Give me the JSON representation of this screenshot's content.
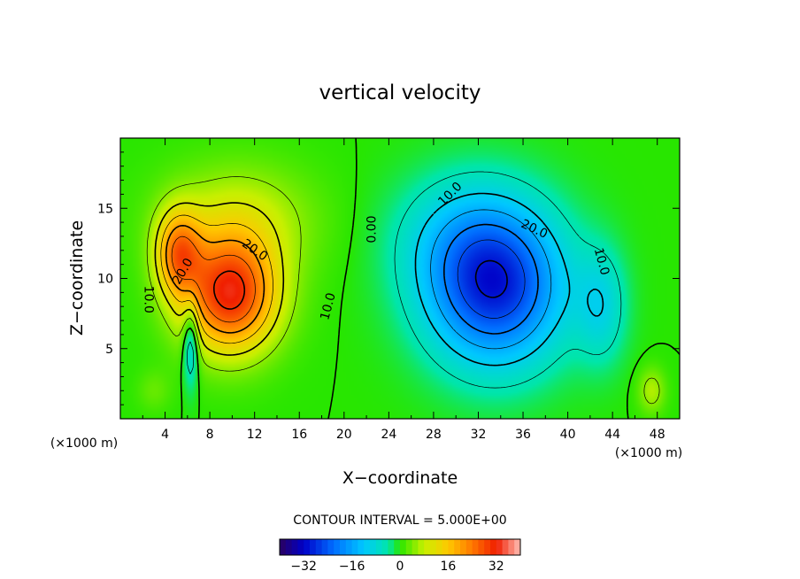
{
  "chart_data": {
    "type": "heatmap",
    "title": "vertical velocity",
    "xlabel": "X−coordinate",
    "ylabel": "Z−coordinate",
    "x_unit": "(×1000 m)",
    "z_unit": "(×1000 m)",
    "xlim": [
      0,
      50
    ],
    "ylim": [
      0,
      20
    ],
    "x_ticks": [
      4,
      8,
      12,
      16,
      20,
      24,
      28,
      32,
      36,
      40,
      44,
      48
    ],
    "y_ticks": [
      5,
      10,
      15
    ],
    "contour_interval_text": "CONTOUR INTERVAL = 5.000E+00",
    "contour_interval": 5,
    "colorbar": {
      "min": -40,
      "max": 40,
      "ticks": [
        -32,
        -16,
        0,
        16,
        32
      ]
    },
    "features": [
      {
        "kind": "updraft",
        "x": 9.5,
        "z": 9.2,
        "peak": 34
      },
      {
        "kind": "updraft",
        "x": 5.5,
        "z": 11.5,
        "peak": 27
      },
      {
        "kind": "downdraft",
        "x": 33.5,
        "z": 9.5,
        "peak": -29
      },
      {
        "kind": "updraft",
        "x": 47.5,
        "z": 2.0,
        "peak": 7
      }
    ],
    "contour_labels": [
      {
        "text": "20.0",
        "x": 12,
        "z": 12.0,
        "angle": 35
      },
      {
        "text": "20.0",
        "x": 5.6,
        "z": 10.5,
        "angle": -60
      },
      {
        "text": "10.0",
        "x": 2.5,
        "z": 8.5,
        "angle": 90
      },
      {
        "text": "10.0",
        "x": 18.6,
        "z": 8.0,
        "angle": -75
      },
      {
        "text": "0.00",
        "x": 22.5,
        "z": 13.5,
        "angle": -90
      },
      {
        "text": "10.0",
        "x": 29.5,
        "z": 16.0,
        "angle": -45
      },
      {
        "text": "20.0",
        "x": 37.0,
        "z": 13.5,
        "angle": 25
      },
      {
        "text": "10.0",
        "x": 43.0,
        "z": 11.2,
        "angle": 75
      }
    ]
  }
}
